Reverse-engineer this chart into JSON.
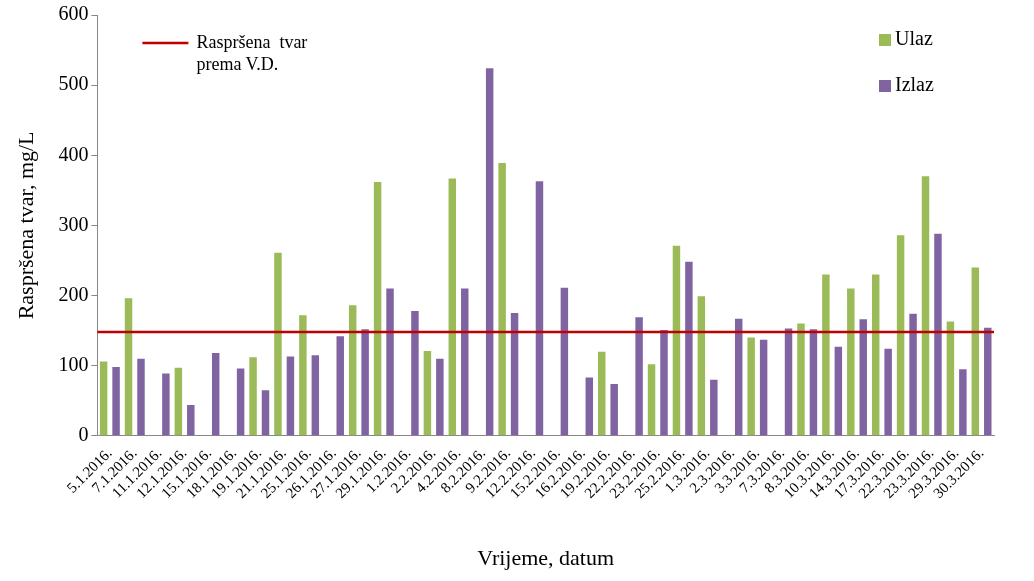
{
  "chart_data": {
    "type": "bar",
    "xlabel": "Vrijeme, datum",
    "ylabel": "Raspršena tvar, mg/L",
    "categories": [
      "5.1.2016.",
      "7.1.2016.",
      "11.1.2016.",
      "12.1.2016.",
      "15.1.2016.",
      "18.1.2016.",
      "19.1.2016.",
      "21.1.2016.",
      "25.1.2016.",
      "26.1.2016.",
      "27.1.2016.",
      "29.1.2016.",
      "1.2.2016.",
      "2.2.2016.",
      "4.2.2016.",
      "8.2.2016.",
      "9.2.2016.",
      "12.2.2016.",
      "15.2.2016.",
      "16.2.2016.",
      "19.2.2016.",
      "22.2.2016.",
      "23.2.2016.",
      "25.2.2016.",
      "1.3.2016.",
      "2.3.2016.",
      "3.3.2016.",
      "7.3.2016.",
      "8.3.2016.",
      "10.3.2016.",
      "14.3.2016.",
      "17.3.2016.",
      "22.3.2016.",
      "23.3.2016.",
      "29.3.2016.",
      "30.3.2016."
    ],
    "series": [
      {
        "name": "Ulaz",
        "color": "#9bbb59",
        "values": [
          106,
          196,
          null,
          97,
          null,
          null,
          112,
          261,
          172,
          null,
          186,
          362,
          null,
          121,
          367,
          null,
          389,
          null,
          null,
          null,
          120,
          null,
          102,
          271,
          199,
          null,
          140,
          null,
          160,
          230,
          210,
          230,
          286,
          370,
          163,
          240
        ]
      },
      {
        "name": "Izlaz",
        "color": "#8064a2",
        "values": [
          98,
          110,
          89,
          44,
          118,
          96,
          65,
          113,
          115,
          142,
          152,
          210,
          178,
          110,
          210,
          524,
          175,
          363,
          211,
          83,
          74,
          169,
          151,
          248,
          80,
          167,
          137,
          153,
          152,
          127,
          166,
          124,
          174,
          288,
          95,
          154
        ]
      }
    ],
    "ylim": [
      0,
      600
    ],
    "yticks": [
      0,
      100,
      200,
      300,
      400,
      500,
      600
    ],
    "ref_lines": [
      {
        "axis": "y",
        "value": 148,
        "label": "Raspršena  tvar\nprema V.D.",
        "color": "#c00000"
      }
    ],
    "legend": "top right",
    "grid": false
  }
}
